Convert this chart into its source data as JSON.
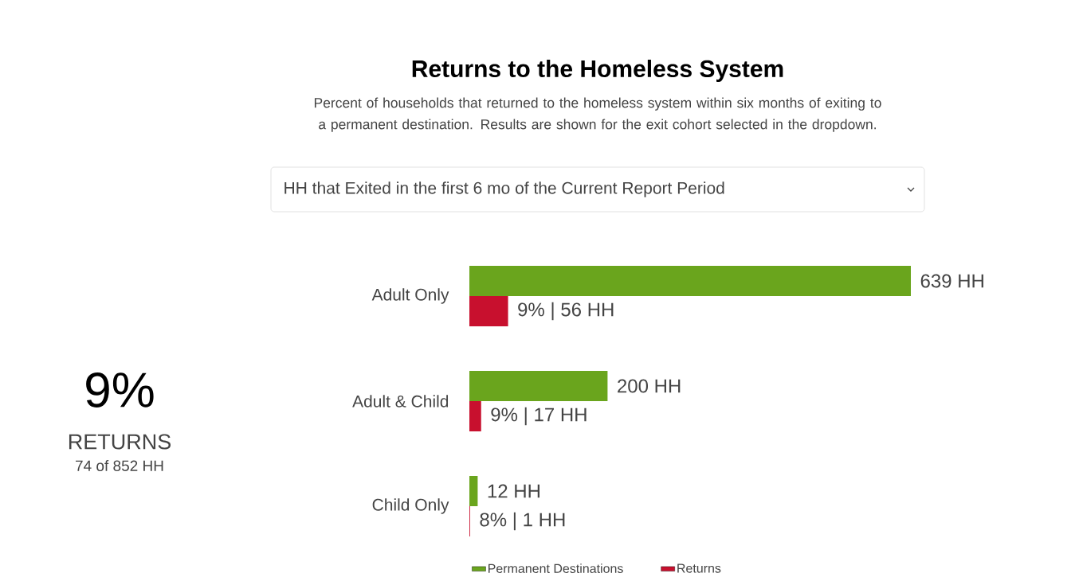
{
  "chart_data": {
    "type": "bar",
    "orientation": "horizontal",
    "title": "Returns to the Homeless System",
    "subtitle": "Percent of households that returned to the homeless system within six months of exiting to a permanent destination. Results are shown for the exit cohort selected in the dropdown.",
    "categories": [
      "Adult Only",
      "Adult & Child",
      "Child Only"
    ],
    "series": [
      {
        "name": "Permanent Destinations",
        "color": "#6aa51d",
        "values": [
          639,
          200,
          12
        ],
        "value_labels": [
          "639 HH",
          "200 HH",
          "12 HH"
        ]
      },
      {
        "name": "Returns",
        "color": "#c8102e",
        "values": [
          56,
          17,
          1
        ],
        "value_labels": [
          "9% | 56 HH",
          "9% | 17 HH",
          "8% | 1 HH"
        ]
      }
    ],
    "legend": "bottom",
    "tick_labels": "y",
    "annotations": [
      "HH that Exited in the first 6 mo of the Current Report Period",
      "9%",
      "RETURNS",
      "74 of 852 HH"
    ]
  }
}
